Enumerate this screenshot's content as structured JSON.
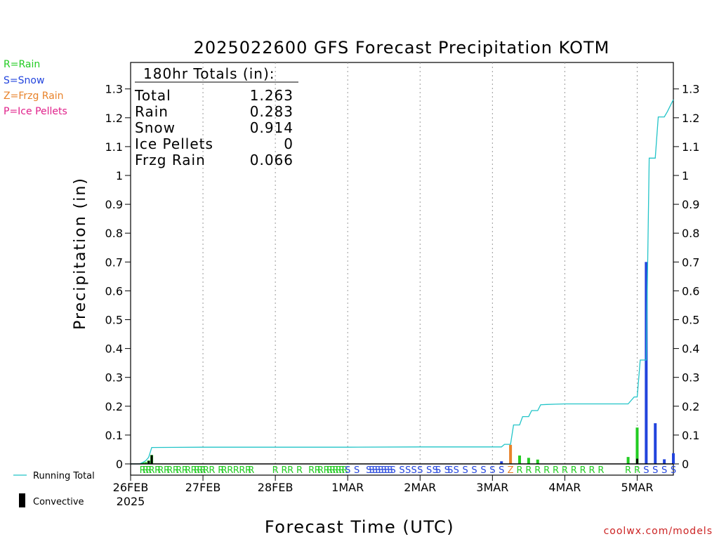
{
  "chart_data": {
    "type": "bar",
    "title": "2025022600 GFS Forecast Precipitation KOTM",
    "ylabel": "Precipitation (in)",
    "xlabel": "Forecast Time (UTC)",
    "ylim": [
      0,
      1.38
    ],
    "xlim_hours": [
      0,
      180
    ],
    "yticks": [
      "0",
      "0.1",
      "0.2",
      "0.3",
      "0.4",
      "0.5",
      "0.6",
      "0.7",
      "0.8",
      "0.9",
      "1",
      "1.1",
      "1.2",
      "1.3"
    ],
    "x_date_labels": [
      "26FEB",
      "27FEB",
      "28FEB",
      "1MAR",
      "2MAR",
      "3MAR",
      "4MAR",
      "5MAR"
    ],
    "x_year_label": "2025",
    "grid": "vertical dotted at day boundaries",
    "legend": {
      "precip_types": [
        "R=Rain",
        "S=Snow",
        "Z=Frzg Rain",
        "P=Ice Pellets"
      ],
      "running_total": "Running Total",
      "convective": "Convective"
    },
    "totals": {
      "heading": "180hr Totals (in):",
      "rows": [
        {
          "label": "Total",
          "value": "1.263"
        },
        {
          "label": "Rain",
          "value": "0.283"
        },
        {
          "label": "Snow",
          "value": "0.914"
        },
        {
          "label": "Ice Pellets",
          "value": "0"
        },
        {
          "label": "Frzg Rain",
          "value": "0.066"
        }
      ]
    },
    "bars": [
      {
        "hour": 4,
        "value": 0.005,
        "type": "R"
      },
      {
        "hour": 5,
        "value": 0.006,
        "type": "R"
      },
      {
        "hour": 6,
        "value": 0.012,
        "type": "R"
      },
      {
        "hour": 7,
        "value": 0.031,
        "type": "R"
      },
      {
        "hour": 123,
        "value": 0.009,
        "type": "S"
      },
      {
        "hour": 126,
        "value": 0.066,
        "type": "Z"
      },
      {
        "hour": 129,
        "value": 0.029,
        "type": "R"
      },
      {
        "hour": 132,
        "value": 0.021,
        "type": "R"
      },
      {
        "hour": 135,
        "value": 0.015,
        "type": "R"
      },
      {
        "hour": 165,
        "value": 0.024,
        "type": "R"
      },
      {
        "hour": 168,
        "value": 0.126,
        "type": "R"
      },
      {
        "hour": 171,
        "value": 0.7,
        "type": "S"
      },
      {
        "hour": 174,
        "value": 0.141,
        "type": "S"
      },
      {
        "hour": 177,
        "value": 0.016,
        "type": "S"
      },
      {
        "hour": 180,
        "value": 0.037,
        "type": "S"
      }
    ],
    "convective_bars": [
      {
        "hour": 6,
        "value": 0.01
      },
      {
        "hour": 7,
        "value": 0.03
      },
      {
        "hour": 168,
        "value": 0.018
      }
    ],
    "running_total": {
      "hours": [
        0,
        3,
        4,
        5,
        6,
        7,
        24,
        48,
        72,
        96,
        120,
        123,
        124,
        126,
        127,
        129,
        130,
        132,
        133,
        135,
        136,
        138,
        141,
        144,
        147,
        150,
        153,
        156,
        159,
        162,
        165,
        167,
        168,
        169,
        171,
        172,
        174,
        175,
        177,
        178,
        180
      ],
      "values": [
        0,
        0,
        0.005,
        0.011,
        0.023,
        0.057,
        0.058,
        0.058,
        0.058,
        0.059,
        0.059,
        0.059,
        0.068,
        0.068,
        0.135,
        0.135,
        0.164,
        0.164,
        0.185,
        0.185,
        0.205,
        0.206,
        0.207,
        0.208,
        0.208,
        0.208,
        0.208,
        0.208,
        0.208,
        0.208,
        0.208,
        0.232,
        0.232,
        0.36,
        0.36,
        1.06,
        1.06,
        1.203,
        1.203,
        1.221,
        1.263
      ]
    },
    "type_markers": [
      {
        "hour": 4,
        "type": "R"
      },
      {
        "hour": 5,
        "type": "R"
      },
      {
        "hour": 6,
        "type": "R"
      },
      {
        "hour": 7,
        "type": "R"
      },
      {
        "hour": 9,
        "type": "R"
      },
      {
        "hour": 10,
        "type": "R"
      },
      {
        "hour": 12,
        "type": "R"
      },
      {
        "hour": 13,
        "type": "R"
      },
      {
        "hour": 15,
        "type": "R"
      },
      {
        "hour": 16,
        "type": "R"
      },
      {
        "hour": 18,
        "type": "R"
      },
      {
        "hour": 19,
        "type": "R"
      },
      {
        "hour": 21,
        "type": "R"
      },
      {
        "hour": 22,
        "type": "R"
      },
      {
        "hour": 23,
        "type": "R"
      },
      {
        "hour": 24,
        "type": "R"
      },
      {
        "hour": 25,
        "type": "R"
      },
      {
        "hour": 27,
        "type": "R"
      },
      {
        "hour": 30,
        "type": "R"
      },
      {
        "hour": 31,
        "type": "R"
      },
      {
        "hour": 33,
        "type": "R"
      },
      {
        "hour": 35,
        "type": "R"
      },
      {
        "hour": 37,
        "type": "R"
      },
      {
        "hour": 39,
        "type": "R"
      },
      {
        "hour": 40,
        "type": "R"
      },
      {
        "hour": 48,
        "type": "R"
      },
      {
        "hour": 51,
        "type": "R"
      },
      {
        "hour": 53,
        "type": "R"
      },
      {
        "hour": 56,
        "type": "R"
      },
      {
        "hour": 60,
        "type": "R"
      },
      {
        "hour": 62,
        "type": "R"
      },
      {
        "hour": 63,
        "type": "R"
      },
      {
        "hour": 65,
        "type": "R"
      },
      {
        "hour": 66,
        "type": "R"
      },
      {
        "hour": 67,
        "type": "R"
      },
      {
        "hour": 68,
        "type": "R"
      },
      {
        "hour": 69,
        "type": "R"
      },
      {
        "hour": 70,
        "type": "R"
      },
      {
        "hour": 71,
        "type": "R"
      },
      {
        "hour": 72,
        "type": "S"
      },
      {
        "hour": 75,
        "type": "S"
      },
      {
        "hour": 79,
        "type": "S"
      },
      {
        "hour": 80,
        "type": "S"
      },
      {
        "hour": 81,
        "type": "S"
      },
      {
        "hour": 82,
        "type": "S"
      },
      {
        "hour": 83,
        "type": "S"
      },
      {
        "hour": 84,
        "type": "S"
      },
      {
        "hour": 85,
        "type": "S"
      },
      {
        "hour": 86,
        "type": "S"
      },
      {
        "hour": 87,
        "type": "S"
      },
      {
        "hour": 90,
        "type": "S"
      },
      {
        "hour": 92,
        "type": "S"
      },
      {
        "hour": 94,
        "type": "S"
      },
      {
        "hour": 96,
        "type": "S"
      },
      {
        "hour": 99,
        "type": "S"
      },
      {
        "hour": 101,
        "type": "S"
      },
      {
        "hour": 102,
        "type": "S"
      },
      {
        "hour": 105,
        "type": "S"
      },
      {
        "hour": 106,
        "type": "S"
      },
      {
        "hour": 108,
        "type": "S"
      },
      {
        "hour": 111,
        "type": "S"
      },
      {
        "hour": 114,
        "type": "S"
      },
      {
        "hour": 117,
        "type": "S"
      },
      {
        "hour": 120,
        "type": "S"
      },
      {
        "hour": 123,
        "type": "S"
      },
      {
        "hour": 126,
        "type": "Z"
      },
      {
        "hour": 129,
        "type": "R"
      },
      {
        "hour": 132,
        "type": "R"
      },
      {
        "hour": 135,
        "type": "R"
      },
      {
        "hour": 138,
        "type": "R"
      },
      {
        "hour": 141,
        "type": "R"
      },
      {
        "hour": 144,
        "type": "R"
      },
      {
        "hour": 147,
        "type": "R"
      },
      {
        "hour": 150,
        "type": "R"
      },
      {
        "hour": 153,
        "type": "R"
      },
      {
        "hour": 156,
        "type": "R"
      },
      {
        "hour": 165,
        "type": "R"
      },
      {
        "hour": 168,
        "type": "R"
      },
      {
        "hour": 171,
        "type": "S"
      },
      {
        "hour": 174,
        "type": "S"
      },
      {
        "hour": 177,
        "type": "S"
      },
      {
        "hour": 180,
        "type": "S"
      }
    ],
    "colors": {
      "R": "#22cc22",
      "S": "#2244dd",
      "Z": "#e8822a",
      "P": "#e0208a",
      "running_total": "#22c4c8",
      "convective": "#000000"
    }
  },
  "credit": "coolwx.com/models",
  "credit_color": "#cc2222"
}
